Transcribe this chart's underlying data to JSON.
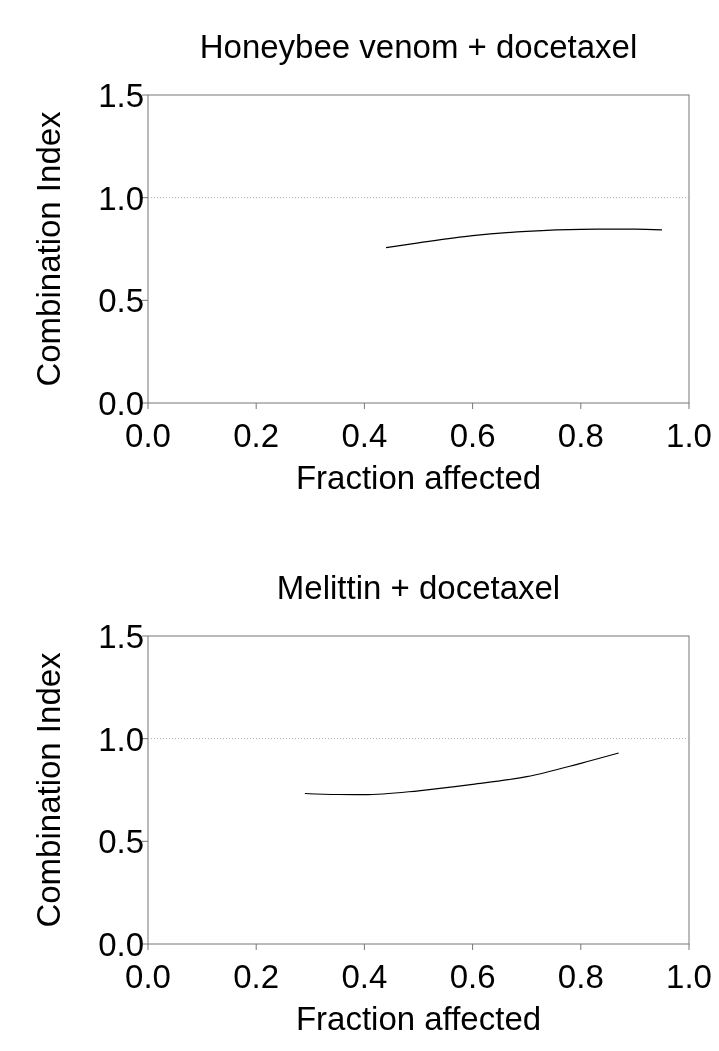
{
  "chart_data": [
    {
      "type": "line",
      "title": "Honeybee venom + docetaxel",
      "xlabel": "Fraction affected",
      "ylabel": "Combination Index",
      "xlim": [
        0,
        1
      ],
      "ylim": [
        0,
        1.5
      ],
      "xticks": [
        {
          "value": 0,
          "label": "0.0"
        },
        {
          "value": 0.2,
          "label": "0.2"
        },
        {
          "value": 0.4,
          "label": "0.4"
        },
        {
          "value": 0.6,
          "label": "0.6"
        },
        {
          "value": 0.8,
          "label": "0.8"
        },
        {
          "value": 1,
          "label": "1.0"
        }
      ],
      "yticks": [
        {
          "value": 0,
          "label": "0.0"
        },
        {
          "value": 0.5,
          "label": "0.5"
        },
        {
          "value": 1,
          "label": "1.0"
        },
        {
          "value": 1.5,
          "label": "1.5"
        }
      ],
      "ref_lines": [
        {
          "axis": "y",
          "value": 1,
          "color": "#aaaaaa",
          "line_style": "dotted"
        }
      ],
      "series": [
        {
          "color": "#000000",
          "x": [
            0.44,
            0.5,
            0.6,
            0.7,
            0.8,
            0.9,
            0.95
          ],
          "values": [
            0.757,
            0.78,
            0.815,
            0.836,
            0.846,
            0.847,
            0.843
          ]
        }
      ]
    },
    {
      "type": "line",
      "title": "Melittin + docetaxel",
      "xlabel": "Fraction affected",
      "ylabel": "Combination Index",
      "xlim": [
        0,
        1
      ],
      "ylim": [
        0,
        1.5
      ],
      "xticks": [
        {
          "value": 0,
          "label": "0.0"
        },
        {
          "value": 0.2,
          "label": "0.2"
        },
        {
          "value": 0.4,
          "label": "0.4"
        },
        {
          "value": 0.6,
          "label": "0.6"
        },
        {
          "value": 0.8,
          "label": "0.8"
        },
        {
          "value": 1,
          "label": "1.0"
        }
      ],
      "yticks": [
        {
          "value": 0,
          "label": "0.0"
        },
        {
          "value": 0.5,
          "label": "0.5"
        },
        {
          "value": 1,
          "label": "1.0"
        },
        {
          "value": 1.5,
          "label": "1.5"
        }
      ],
      "ref_lines": [
        {
          "axis": "y",
          "value": 1,
          "color": "#aaaaaa",
          "line_style": "dotted"
        }
      ],
      "series": [
        {
          "color": "#000000",
          "x": [
            0.29,
            0.35,
            0.4,
            0.5,
            0.6,
            0.7,
            0.8,
            0.87
          ],
          "values": [
            0.733,
            0.728,
            0.727,
            0.746,
            0.777,
            0.815,
            0.88,
            0.93
          ]
        }
      ]
    }
  ]
}
